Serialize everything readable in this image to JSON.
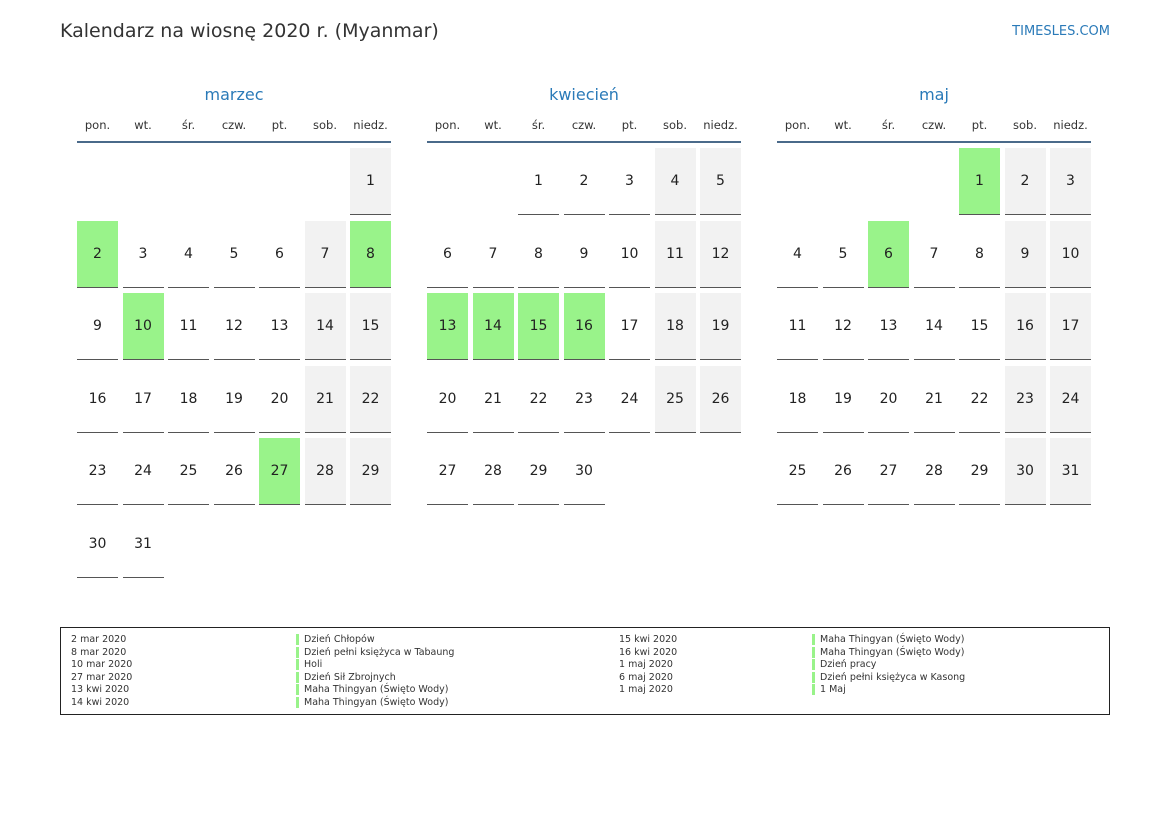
{
  "header": {
    "title": "Kalendarz na wiosnę 2020 r. (Myanmar)",
    "site": "TIMESLES.COM"
  },
  "weekdays": [
    "pon.",
    "wt.",
    "śr.",
    "czw.",
    "pt.",
    "sob.",
    "niedz."
  ],
  "months": [
    {
      "name": "marzec",
      "holidays": [
        2,
        8,
        10,
        27
      ],
      "weeks": [
        [
          null,
          null,
          null,
          null,
          null,
          null,
          1
        ],
        [
          2,
          3,
          4,
          5,
          6,
          7,
          8
        ],
        [
          9,
          10,
          11,
          12,
          13,
          14,
          15
        ],
        [
          16,
          17,
          18,
          19,
          20,
          21,
          22
        ],
        [
          23,
          24,
          25,
          26,
          27,
          28,
          29
        ],
        [
          30,
          31,
          null,
          null,
          null,
          null,
          null
        ]
      ]
    },
    {
      "name": "kwiecień",
      "holidays": [
        13,
        14,
        15,
        16
      ],
      "weeks": [
        [
          null,
          null,
          1,
          2,
          3,
          4,
          5
        ],
        [
          6,
          7,
          8,
          9,
          10,
          11,
          12
        ],
        [
          13,
          14,
          15,
          16,
          17,
          18,
          19
        ],
        [
          20,
          21,
          22,
          23,
          24,
          25,
          26
        ],
        [
          27,
          28,
          29,
          30,
          null,
          null,
          null
        ]
      ]
    },
    {
      "name": "maj",
      "holidays": [
        1,
        6
      ],
      "weeks": [
        [
          null,
          null,
          null,
          null,
          1,
          2,
          3
        ],
        [
          4,
          5,
          6,
          7,
          8,
          9,
          10
        ],
        [
          11,
          12,
          13,
          14,
          15,
          16,
          17
        ],
        [
          18,
          19,
          20,
          21,
          22,
          23,
          24
        ],
        [
          25,
          26,
          27,
          28,
          29,
          30,
          31
        ]
      ]
    }
  ],
  "legend": [
    {
      "date": "2 mar 2020",
      "name": "Dzień Chłopów"
    },
    {
      "date": "8 mar 2020",
      "name": "Dzień pełni księżyca w Tabaung"
    },
    {
      "date": "10 mar 2020",
      "name": "Holi"
    },
    {
      "date": "27 mar 2020",
      "name": "Dzień Sił Zbrojnych"
    },
    {
      "date": "13 kwi 2020",
      "name": "Maha Thingyan (Święto Wody)"
    },
    {
      "date": "14 kwi 2020",
      "name": "Maha Thingyan (Święto Wody)"
    },
    {
      "date": "15 kwi 2020",
      "name": "Maha Thingyan (Święto Wody)"
    },
    {
      "date": "16 kwi 2020",
      "name": "Maha Thingyan (Święto Wody)"
    },
    {
      "date": "1 maj 2020",
      "name": "Dzień pracy"
    },
    {
      "date": "6 maj 2020",
      "name": "Dzień pełni księżyca w Kasong"
    },
    {
      "date": "1 maj 2020",
      "name": "1 Maj"
    }
  ]
}
